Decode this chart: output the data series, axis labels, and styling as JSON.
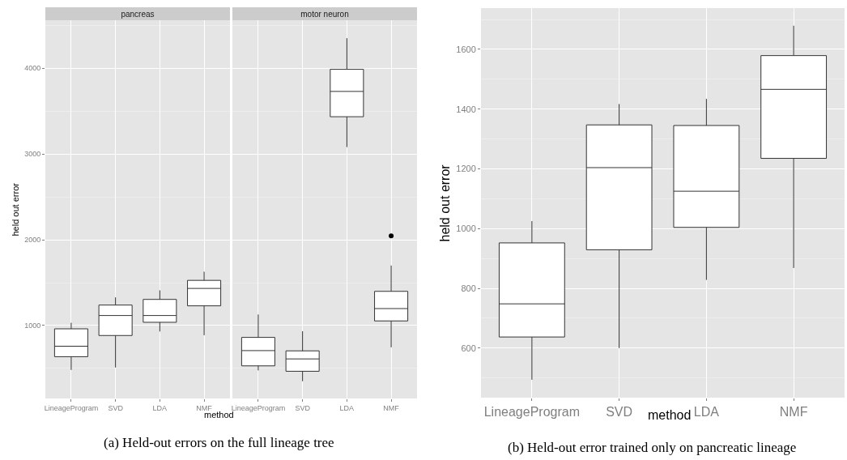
{
  "chart_data": [
    {
      "type": "box",
      "title": "pancreas",
      "xlabel": "method",
      "ylabel": "held out error",
      "annotations": [
        "(a) Held-out errors on the full lineage tree"
      ],
      "categories": [
        "LineageProgram",
        "SVD",
        "LDA",
        "NMF"
      ],
      "color": "#333333",
      "grid": true,
      "ylim": [
        150,
        4560
      ],
      "yticks": [
        1000,
        2000,
        3000,
        4000
      ],
      "boxes": [
        {
          "low": 483,
          "q1": 637,
          "median": 759,
          "q3": 962,
          "high": 1032
        },
        {
          "low": 511,
          "q1": 884,
          "median": 1117,
          "q3": 1239,
          "high": 1329
        },
        {
          "low": 931,
          "q1": 1038,
          "median": 1117,
          "q3": 1305,
          "high": 1411
        },
        {
          "low": 887,
          "q1": 1230,
          "median": 1433,
          "q3": 1527,
          "high": 1628
        }
      ]
    },
    {
      "type": "box",
      "title": "motor neuron",
      "categories": [
        "LineageProgram",
        "SVD",
        "LDA",
        "NMF"
      ],
      "color": "#333333",
      "grid": true,
      "ylim": [
        150,
        4560
      ],
      "yticks": [
        1000,
        2000,
        3000,
        4000
      ],
      "tick_labels": "x",
      "boxes": [
        {
          "low": 477,
          "q1": 530,
          "median": 708,
          "q3": 862,
          "high": 1129
        },
        {
          "low": 351,
          "q1": 467,
          "median": 611,
          "q3": 705,
          "high": 934
        },
        {
          "low": 3081,
          "q1": 3435,
          "median": 3730,
          "q3": 3988,
          "high": 4351
        },
        {
          "low": 746,
          "q1": 1054,
          "median": 1198,
          "q3": 1399,
          "high": 1700,
          "outliers": [
            2045
          ]
        }
      ]
    },
    {
      "type": "box",
      "xlabel": "method",
      "ylabel": "held out error",
      "annotations": [
        "(b) Held-out error trained only on pancreatic lineage"
      ],
      "categories": [
        "LineageProgram",
        "SVD",
        "LDA",
        "NMF"
      ],
      "color": "#333333",
      "grid": true,
      "ylim": [
        434,
        1738
      ],
      "yticks": [
        600,
        800,
        1000,
        1200,
        1400,
        1600
      ],
      "boxes": [
        {
          "low": 494,
          "q1": 637,
          "median": 748,
          "q3": 952,
          "high": 1025
        },
        {
          "low": 600,
          "q1": 929,
          "median": 1204,
          "q3": 1347,
          "high": 1417
        },
        {
          "low": 828,
          "q1": 1004,
          "median": 1125,
          "q3": 1345,
          "high": 1434
        },
        {
          "low": 868,
          "q1": 1235,
          "median": 1466,
          "q3": 1579,
          "high": 1679
        }
      ]
    }
  ]
}
